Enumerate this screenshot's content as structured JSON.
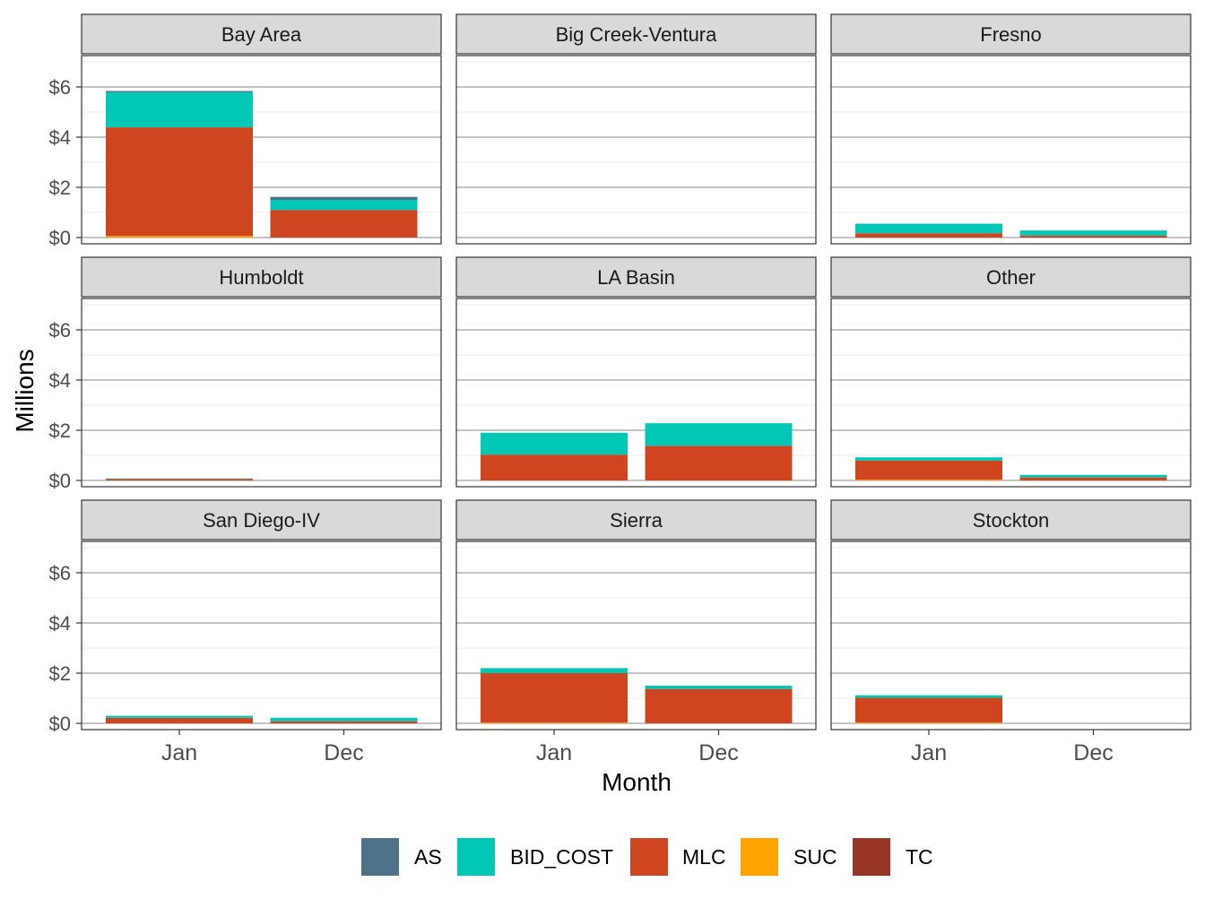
{
  "chart_data": {
    "type": "bar",
    "stacked": true,
    "faceted": true,
    "xlabel": "Month",
    "ylabel": "Millions",
    "categories": [
      "Jan",
      "Dec"
    ],
    "ylim": [
      -0.25,
      7.25
    ],
    "yticks": [
      0,
      2,
      4,
      6
    ],
    "ytick_labels": [
      "$0",
      "$2",
      "$4",
      "$6"
    ],
    "grid": true,
    "legend": {
      "position": "bottom",
      "entries": [
        {
          "name": "AS",
          "color": "#4E7287"
        },
        {
          "name": "BID_COST",
          "color": "#00C8B4"
        },
        {
          "name": "MLC",
          "color": "#CF4520"
        },
        {
          "name": "SUC",
          "color": "#FFA300"
        },
        {
          "name": "TC",
          "color": "#983524"
        }
      ]
    },
    "panels": [
      {
        "title": "Bay Area",
        "series": {
          "AS": [
            0.05,
            0.12
          ],
          "BID_COST": [
            1.4,
            0.4
          ],
          "MLC": [
            4.33,
            1.1
          ],
          "SUC": [
            0.06,
            0.0
          ],
          "TC": [
            0.0,
            0.0
          ]
        }
      },
      {
        "title": "Big Creek-Ventura",
        "series": {
          "AS": [
            0.0,
            0.0
          ],
          "BID_COST": [
            0.0,
            0.0
          ],
          "MLC": [
            0.0,
            0.0
          ],
          "SUC": [
            0.0,
            0.0
          ],
          "TC": [
            0.0,
            0.0
          ]
        }
      },
      {
        "title": "Fresno",
        "series": {
          "AS": [
            0.0,
            0.0
          ],
          "BID_COST": [
            0.38,
            0.2
          ],
          "MLC": [
            0.17,
            0.08
          ],
          "SUC": [
            0.0,
            0.0
          ],
          "TC": [
            0.0,
            0.0
          ]
        }
      },
      {
        "title": "Humboldt",
        "series": {
          "AS": [
            0.0,
            0.0
          ],
          "BID_COST": [
            0.02,
            0.0
          ],
          "MLC": [
            0.06,
            0.0
          ],
          "SUC": [
            0.0,
            0.0
          ],
          "TC": [
            0.0,
            0.0
          ]
        }
      },
      {
        "title": "LA Basin",
        "series": {
          "AS": [
            0.0,
            0.0
          ],
          "BID_COST": [
            0.87,
            0.9
          ],
          "MLC": [
            1.03,
            1.38
          ],
          "SUC": [
            0.0,
            0.0
          ],
          "TC": [
            0.0,
            0.0
          ]
        }
      },
      {
        "title": "Other",
        "series": {
          "AS": [
            0.0,
            0.0
          ],
          "BID_COST": [
            0.13,
            0.1
          ],
          "MLC": [
            0.76,
            0.12
          ],
          "SUC": [
            0.03,
            0.0
          ],
          "TC": [
            0.0,
            0.0
          ]
        }
      },
      {
        "title": "San Diego-IV",
        "series": {
          "AS": [
            0.0,
            0.0
          ],
          "BID_COST": [
            0.08,
            0.14
          ],
          "MLC": [
            0.22,
            0.08
          ],
          "SUC": [
            0.0,
            0.0
          ],
          "TC": [
            0.0,
            0.0
          ]
        }
      },
      {
        "title": "Sierra",
        "series": {
          "AS": [
            0.0,
            0.0
          ],
          "BID_COST": [
            0.2,
            0.13
          ],
          "MLC": [
            1.97,
            1.37
          ],
          "SUC": [
            0.03,
            0.0
          ],
          "TC": [
            0.0,
            0.0
          ]
        }
      },
      {
        "title": "Stockton",
        "series": {
          "AS": [
            0.0,
            0.0
          ],
          "BID_COST": [
            0.1,
            0.0
          ],
          "MLC": [
            0.99,
            0.0
          ],
          "SUC": [
            0.03,
            0.0
          ],
          "TC": [
            0.0,
            0.0
          ]
        }
      }
    ]
  }
}
